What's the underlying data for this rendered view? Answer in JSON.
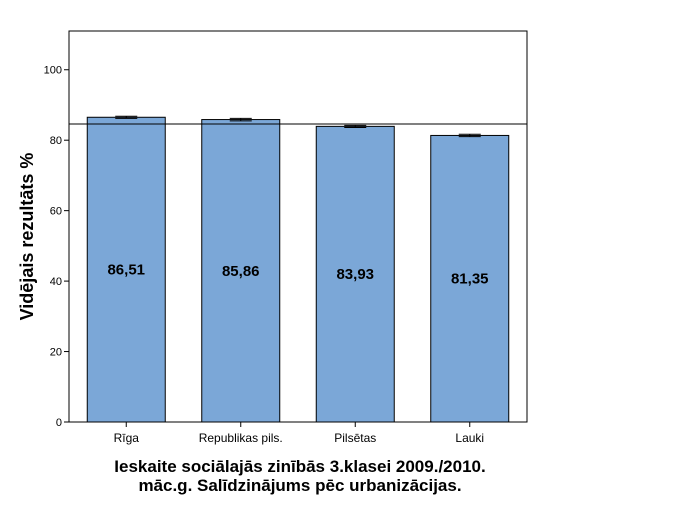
{
  "chart_data": {
    "type": "bar",
    "categories": [
      "Rīga",
      "Republikas pils.",
      "Pilsētas",
      "Lauki"
    ],
    "values": [
      86.51,
      85.86,
      83.93,
      81.35
    ],
    "data_labels": [
      "86,51",
      "85,86",
      "83,93",
      "81,35"
    ],
    "error_bars": [
      [
        86.2,
        86.8
      ],
      [
        85.5,
        86.2
      ],
      [
        83.6,
        84.2
      ],
      [
        81.0,
        81.7
      ]
    ],
    "reference_line": 84.6,
    "ylabel": "Vidējais rezultāts %",
    "xlabel": "",
    "ylim": [
      0,
      111
    ],
    "yticks": [
      0,
      20,
      40,
      60,
      80,
      100
    ],
    "ytick_labels": [
      "0",
      "20",
      "40",
      "60",
      "80",
      "100"
    ],
    "bar_color": "#7ba7d7",
    "grid": false,
    "caption_lines": [
      "Ieskaite sociālajās zinībās 3.klasei 2009./2010.",
      "māc.g. Salīdzinājums pēc urbanizācijas."
    ]
  }
}
